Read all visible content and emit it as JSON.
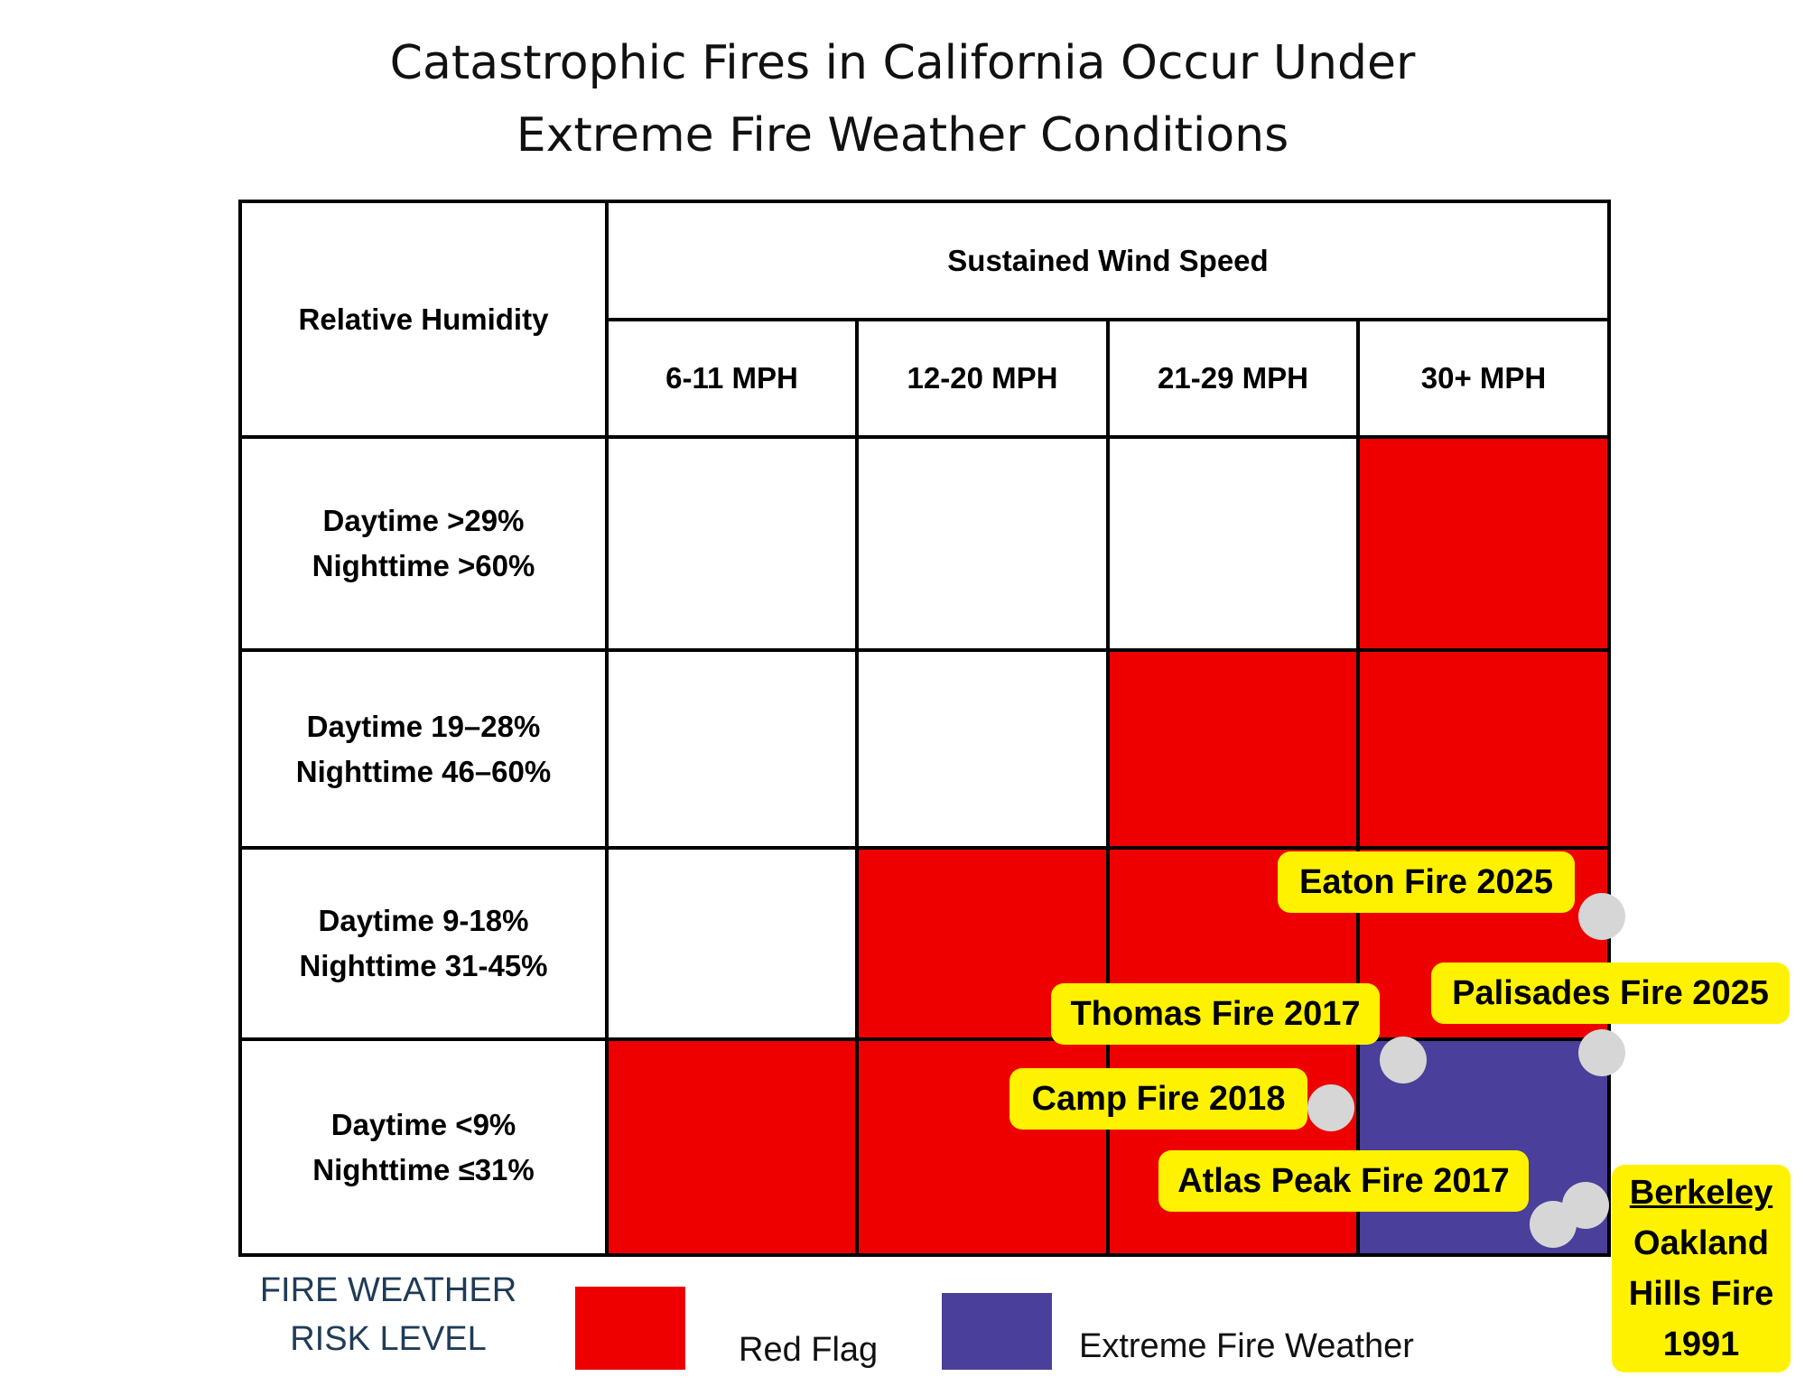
{
  "chart_data": {
    "type": "table",
    "title_lines": [
      "Catastrophic Fires in California Occur Under",
      "Extreme Fire Weather Conditions"
    ],
    "row_header": "Relative Humidity",
    "column_group_header": "Sustained Wind Speed",
    "columns": [
      "6-11 MPH",
      "12-20 MPH",
      "21-29 MPH",
      "30+ MPH"
    ],
    "rows": [
      {
        "line1": "Daytime >29%",
        "line2": "Nighttime >60%",
        "risk": [
          "none",
          "none",
          "none",
          "red_flag"
        ]
      },
      {
        "line1": "Daytime 19–28%",
        "line2": "Nighttime 46–60%",
        "risk": [
          "none",
          "none",
          "red_flag",
          "red_flag"
        ]
      },
      {
        "line1": "Daytime 9-18%",
        "line2": "Nighttime 31-45%",
        "risk": [
          "none",
          "red_flag",
          "red_flag",
          "red_flag"
        ]
      },
      {
        "line1": "Daytime <9%",
        "line2": "Nighttime ≤31%",
        "risk": [
          "red_flag",
          "red_flag",
          "red_flag",
          "extreme"
        ]
      }
    ],
    "risk_colors": {
      "none": "#ffffff",
      "red_flag": "#ee0000",
      "extreme": "#4a3f9a"
    },
    "legend": {
      "title_lines": [
        "FIRE WEATHER",
        "RISK LEVEL"
      ],
      "items": [
        {
          "label": "Red Flag",
          "color": "#ee0000"
        },
        {
          "label": "Extreme Fire Weather",
          "color": "#4a3f9a"
        }
      ]
    },
    "annotations": [
      {
        "label": "Eaton Fire 2025"
      },
      {
        "label": "Palisades Fire 2025"
      },
      {
        "label": "Thomas Fire 2017"
      },
      {
        "label": "Camp Fire 2018"
      },
      {
        "label": "Atlas Peak Fire 2017"
      },
      {
        "label_lines": [
          "Berkeley",
          "Oakland",
          "Hills Fire",
          "1991"
        ]
      }
    ],
    "annotation_color": "#fff200",
    "marker_color": "#d6d6d6"
  }
}
